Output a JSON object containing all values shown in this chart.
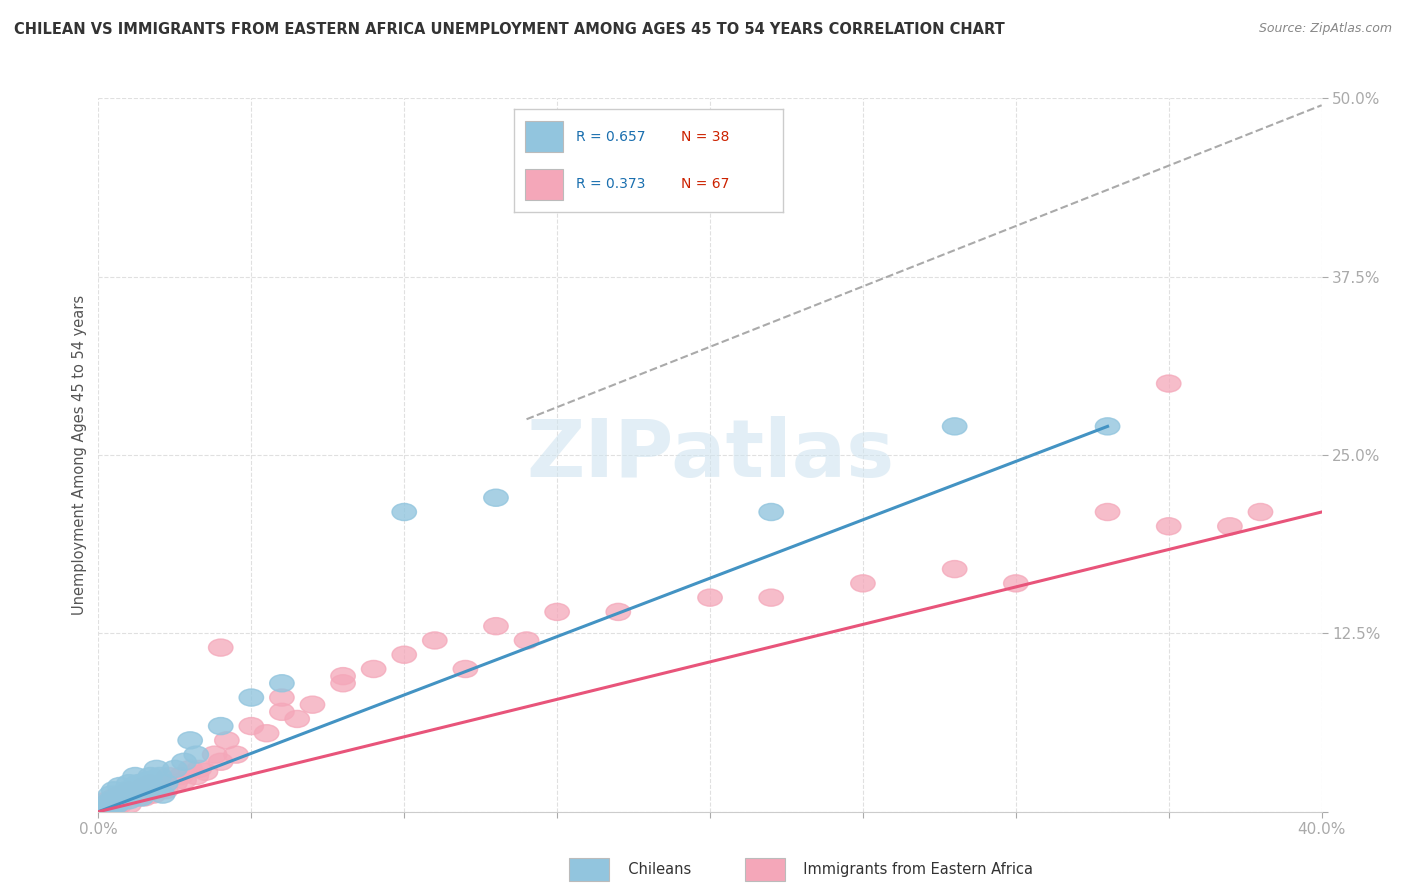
{
  "title": "CHILEAN VS IMMIGRANTS FROM EASTERN AFRICA UNEMPLOYMENT AMONG AGES 45 TO 54 YEARS CORRELATION CHART",
  "source": "Source: ZipAtlas.com",
  "ylabel": "Unemployment Among Ages 45 to 54 years",
  "xlim": [
    0.0,
    0.4
  ],
  "ylim": [
    0.0,
    0.5
  ],
  "xticks": [
    0.0,
    0.05,
    0.1,
    0.15,
    0.2,
    0.25,
    0.3,
    0.35,
    0.4
  ],
  "xticklabels": [
    "0.0%",
    "",
    "",
    "",
    "",
    "",
    "",
    "",
    "40.0%"
  ],
  "yticks": [
    0.0,
    0.125,
    0.25,
    0.375,
    0.5
  ],
  "yticklabels": [
    "",
    "12.5%",
    "25.0%",
    "37.5%",
    "50.0%"
  ],
  "chilean_color": "#92c5de",
  "immigrant_color": "#f4a7b9",
  "chilean_line_color": "#4393c3",
  "immigrant_line_color": "#e8547a",
  "legend_R_color": "#1a6faf",
  "legend_N_color": "#cc2200",
  "watermark": "ZIPatlas",
  "watermark_color": "#d0e4f0",
  "background_color": "#ffffff",
  "grid_color": "#e0e0e0",
  "chilean_x": [
    0.001,
    0.002,
    0.003,
    0.004,
    0.004,
    0.005,
    0.005,
    0.006,
    0.007,
    0.007,
    0.008,
    0.009,
    0.01,
    0.01,
    0.011,
    0.012,
    0.013,
    0.014,
    0.015,
    0.016,
    0.017,
    0.018,
    0.019,
    0.02,
    0.021,
    0.022,
    0.025,
    0.028,
    0.03,
    0.032,
    0.04,
    0.05,
    0.06,
    0.1,
    0.13,
    0.22,
    0.28,
    0.33
  ],
  "chilean_y": [
    0.0,
    0.005,
    0.003,
    0.008,
    0.012,
    0.005,
    0.015,
    0.005,
    0.008,
    0.018,
    0.01,
    0.015,
    0.008,
    0.02,
    0.015,
    0.025,
    0.02,
    0.01,
    0.018,
    0.022,
    0.025,
    0.015,
    0.03,
    0.025,
    0.012,
    0.02,
    0.03,
    0.035,
    0.05,
    0.04,
    0.06,
    0.08,
    0.09,
    0.21,
    0.22,
    0.21,
    0.27,
    0.27
  ],
  "immigrant_x": [
    0.0,
    0.001,
    0.002,
    0.003,
    0.003,
    0.004,
    0.005,
    0.005,
    0.006,
    0.007,
    0.007,
    0.008,
    0.009,
    0.01,
    0.01,
    0.011,
    0.012,
    0.013,
    0.014,
    0.015,
    0.015,
    0.016,
    0.017,
    0.018,
    0.019,
    0.02,
    0.021,
    0.022,
    0.023,
    0.025,
    0.027,
    0.028,
    0.03,
    0.032,
    0.033,
    0.035,
    0.038,
    0.04,
    0.042,
    0.045,
    0.05,
    0.055,
    0.06,
    0.065,
    0.07,
    0.08,
    0.09,
    0.1,
    0.11,
    0.12,
    0.13,
    0.14,
    0.15,
    0.17,
    0.2,
    0.22,
    0.25,
    0.28,
    0.3,
    0.33,
    0.35,
    0.37,
    0.38,
    0.04,
    0.06,
    0.08,
    0.35
  ],
  "immigrant_y": [
    0.0,
    0.003,
    0.005,
    0.002,
    0.008,
    0.005,
    0.003,
    0.01,
    0.007,
    0.005,
    0.012,
    0.008,
    0.01,
    0.005,
    0.015,
    0.01,
    0.013,
    0.01,
    0.015,
    0.01,
    0.018,
    0.015,
    0.02,
    0.012,
    0.018,
    0.015,
    0.02,
    0.015,
    0.025,
    0.02,
    0.025,
    0.022,
    0.03,
    0.025,
    0.03,
    0.028,
    0.04,
    0.035,
    0.05,
    0.04,
    0.06,
    0.055,
    0.07,
    0.065,
    0.075,
    0.09,
    0.1,
    0.11,
    0.12,
    0.1,
    0.13,
    0.12,
    0.14,
    0.14,
    0.15,
    0.15,
    0.16,
    0.17,
    0.16,
    0.21,
    0.2,
    0.2,
    0.21,
    0.115,
    0.08,
    0.095,
    0.3
  ],
  "blue_line_x0": 0.0,
  "blue_line_y0": 0.0,
  "blue_line_x1": 0.33,
  "blue_line_y1": 0.27,
  "pink_line_x0": 0.0,
  "pink_line_y0": 0.0,
  "pink_line_x1": 0.4,
  "pink_line_y1": 0.21,
  "dash_line_x0": 0.14,
  "dash_line_y0": 0.275,
  "dash_line_x1": 0.4,
  "dash_line_y1": 0.495
}
